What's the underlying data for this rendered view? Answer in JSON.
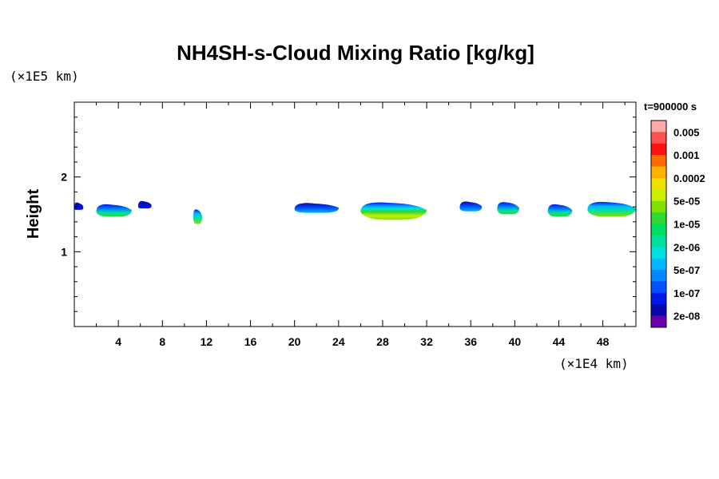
{
  "chart_data": {
    "type": "heatmap",
    "title": "NH4SH-s-Cloud Mixing Ratio [kg/kg]",
    "ylabel": "Height",
    "y_unit": "(×1E5 km)",
    "x_unit": "(×1E4 km)",
    "time_label": "t=900000 s",
    "xlim": [
      0,
      51
    ],
    "ylim": [
      0,
      3
    ],
    "x_ticks": [
      "4",
      "8",
      "12",
      "16",
      "20",
      "24",
      "28",
      "32",
      "36",
      "40",
      "44",
      "48"
    ],
    "y_ticks": [
      "1",
      "2"
    ],
    "colorbar": {
      "labels": [
        "0.005",
        "0.001",
        "0.0002",
        "5e-05",
        "1e-05",
        "2e-06",
        "5e-07",
        "1e-07",
        "2e-08"
      ],
      "colors": [
        "#ffa8a8",
        "#ff5050",
        "#ff1010",
        "#ff6a00",
        "#ffb000",
        "#f0e000",
        "#c8f000",
        "#80e000",
        "#30d830",
        "#00e060",
        "#00e0a0",
        "#00e0e0",
        "#00b8ff",
        "#0088ff",
        "#0050ff",
        "#0018e8",
        "#0808a8",
        "#6a00a8"
      ]
    },
    "clouds": [
      {
        "x0": 0.0,
        "x1": 0.8,
        "y": 1.6,
        "level": 1
      },
      {
        "x0": 2.0,
        "x1": 5.2,
        "y": 1.55,
        "level": 3
      },
      {
        "x0": 5.8,
        "x1": 7.0,
        "y": 1.62,
        "level": 1
      },
      {
        "x0": 10.8,
        "x1": 11.6,
        "y": 1.47,
        "level": 4
      },
      {
        "x0": 20.0,
        "x1": 24.0,
        "y": 1.58,
        "level": 2
      },
      {
        "x0": 26.0,
        "x1": 32.0,
        "y": 1.55,
        "level": 5
      },
      {
        "x0": 35.0,
        "x1": 37.0,
        "y": 1.6,
        "level": 2
      },
      {
        "x0": 38.4,
        "x1": 40.4,
        "y": 1.58,
        "level": 3
      },
      {
        "x0": 43.0,
        "x1": 45.2,
        "y": 1.55,
        "level": 3
      },
      {
        "x0": 46.6,
        "x1": 51.0,
        "y": 1.57,
        "level": 4
      }
    ]
  }
}
